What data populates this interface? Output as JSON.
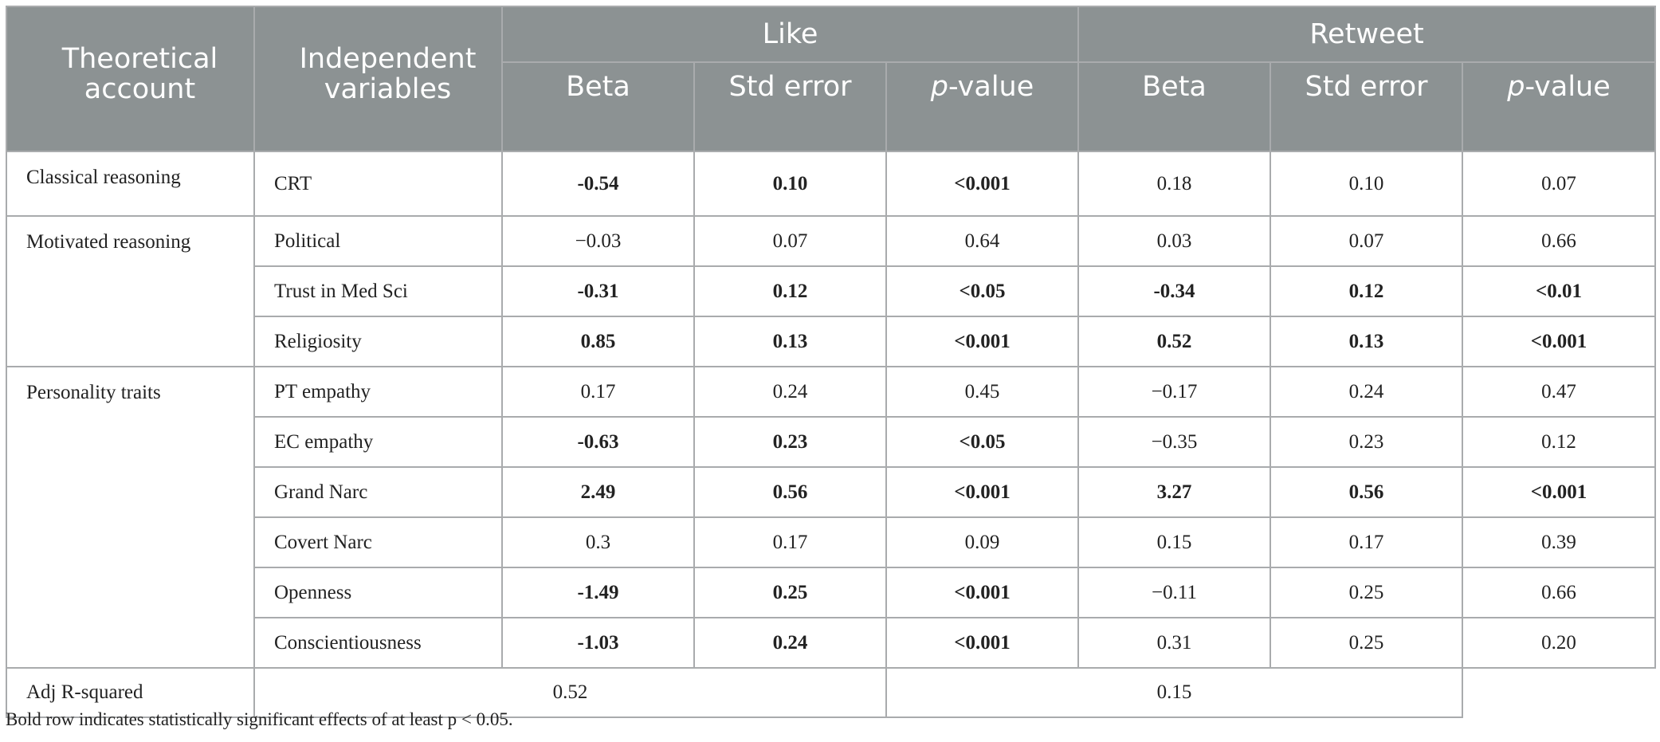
{
  "header": {
    "theoretical_account": "Theoretical account",
    "independent_variables": "Independent variables",
    "groups": [
      "Like",
      "Retweet"
    ],
    "columns": [
      {
        "label": "Beta"
      },
      {
        "label": "Std error"
      },
      {
        "label_italic": "p",
        "label_rest": "-value"
      },
      {
        "label": "Beta"
      },
      {
        "label": "Std error"
      },
      {
        "label_italic": "p",
        "label_rest": "-value"
      }
    ]
  },
  "rows": [
    {
      "account": "Classical reasoning",
      "variable": "CRT",
      "cells": [
        {
          "v": "-0.54",
          "b": true
        },
        {
          "v": "0.10",
          "b": true
        },
        {
          "v": "<0.001",
          "b": true
        },
        {
          "v": "0.18",
          "b": false
        },
        {
          "v": "0.10",
          "b": false
        },
        {
          "v": "0.07",
          "b": false
        }
      ]
    },
    {
      "account": "Motivated reasoning",
      "variable": "Political",
      "cells": [
        {
          "v": "−0.03",
          "b": false
        },
        {
          "v": "0.07",
          "b": false
        },
        {
          "v": "0.64",
          "b": false
        },
        {
          "v": "0.03",
          "b": false
        },
        {
          "v": "0.07",
          "b": false
        },
        {
          "v": "0.66",
          "b": false
        }
      ]
    },
    {
      "variable": "Trust in Med Sci",
      "cells": [
        {
          "v": "-0.31",
          "b": true
        },
        {
          "v": "0.12",
          "b": true
        },
        {
          "v": "<0.05",
          "b": true
        },
        {
          "v": "-0.34",
          "b": true
        },
        {
          "v": "0.12",
          "b": true
        },
        {
          "v": "<0.01",
          "b": true
        }
      ]
    },
    {
      "variable": "Religiosity",
      "cells": [
        {
          "v": "0.85",
          "b": true
        },
        {
          "v": "0.13",
          "b": true
        },
        {
          "v": "<0.001",
          "b": true
        },
        {
          "v": "0.52",
          "b": true
        },
        {
          "v": "0.13",
          "b": true
        },
        {
          "v": "<0.001",
          "b": true
        }
      ]
    },
    {
      "account": "Personality traits",
      "variable": "PT empathy",
      "cells": [
        {
          "v": "0.17",
          "b": false
        },
        {
          "v": "0.24",
          "b": false
        },
        {
          "v": "0.45",
          "b": false
        },
        {
          "v": "−0.17",
          "b": false
        },
        {
          "v": "0.24",
          "b": false
        },
        {
          "v": "0.47",
          "b": false
        }
      ]
    },
    {
      "variable": "EC empathy",
      "cells": [
        {
          "v": "-0.63",
          "b": true
        },
        {
          "v": "0.23",
          "b": true
        },
        {
          "v": "<0.05",
          "b": true
        },
        {
          "v": "−0.35",
          "b": false
        },
        {
          "v": "0.23",
          "b": false
        },
        {
          "v": "0.12",
          "b": false
        }
      ]
    },
    {
      "variable": "Grand Narc",
      "cells": [
        {
          "v": "2.49",
          "b": true
        },
        {
          "v": "0.56",
          "b": true
        },
        {
          "v": "<0.001",
          "b": true
        },
        {
          "v": "3.27",
          "b": true
        },
        {
          "v": "0.56",
          "b": true
        },
        {
          "v": "<0.001",
          "b": true
        }
      ]
    },
    {
      "variable": "Covert Narc",
      "cells": [
        {
          "v": "0.3",
          "b": false
        },
        {
          "v": "0.17",
          "b": false
        },
        {
          "v": "0.09",
          "b": false
        },
        {
          "v": "0.15",
          "b": false
        },
        {
          "v": "0.17",
          "b": false
        },
        {
          "v": "0.39",
          "b": false
        }
      ]
    },
    {
      "variable": "Openness",
      "cells": [
        {
          "v": "-1.49",
          "b": true
        },
        {
          "v": "0.25",
          "b": true
        },
        {
          "v": "<0.001",
          "b": true
        },
        {
          "v": "−0.11",
          "b": false
        },
        {
          "v": "0.25",
          "b": false
        },
        {
          "v": "0.66",
          "b": false
        }
      ]
    },
    {
      "variable": "Conscientiousness",
      "cells": [
        {
          "v": "-1.03",
          "b": true
        },
        {
          "v": "0.24",
          "b": true
        },
        {
          "v": "<0.001",
          "b": true
        },
        {
          "v": "0.31",
          "b": false
        },
        {
          "v": "0.25",
          "b": false
        },
        {
          "v": "0.20",
          "b": false
        }
      ]
    }
  ],
  "adj": {
    "label": "Adj R-squared",
    "like": "0.52",
    "retweet": "0.15"
  },
  "footnote": "Bold row indicates statistically significant effects of at least p < 0.05."
}
